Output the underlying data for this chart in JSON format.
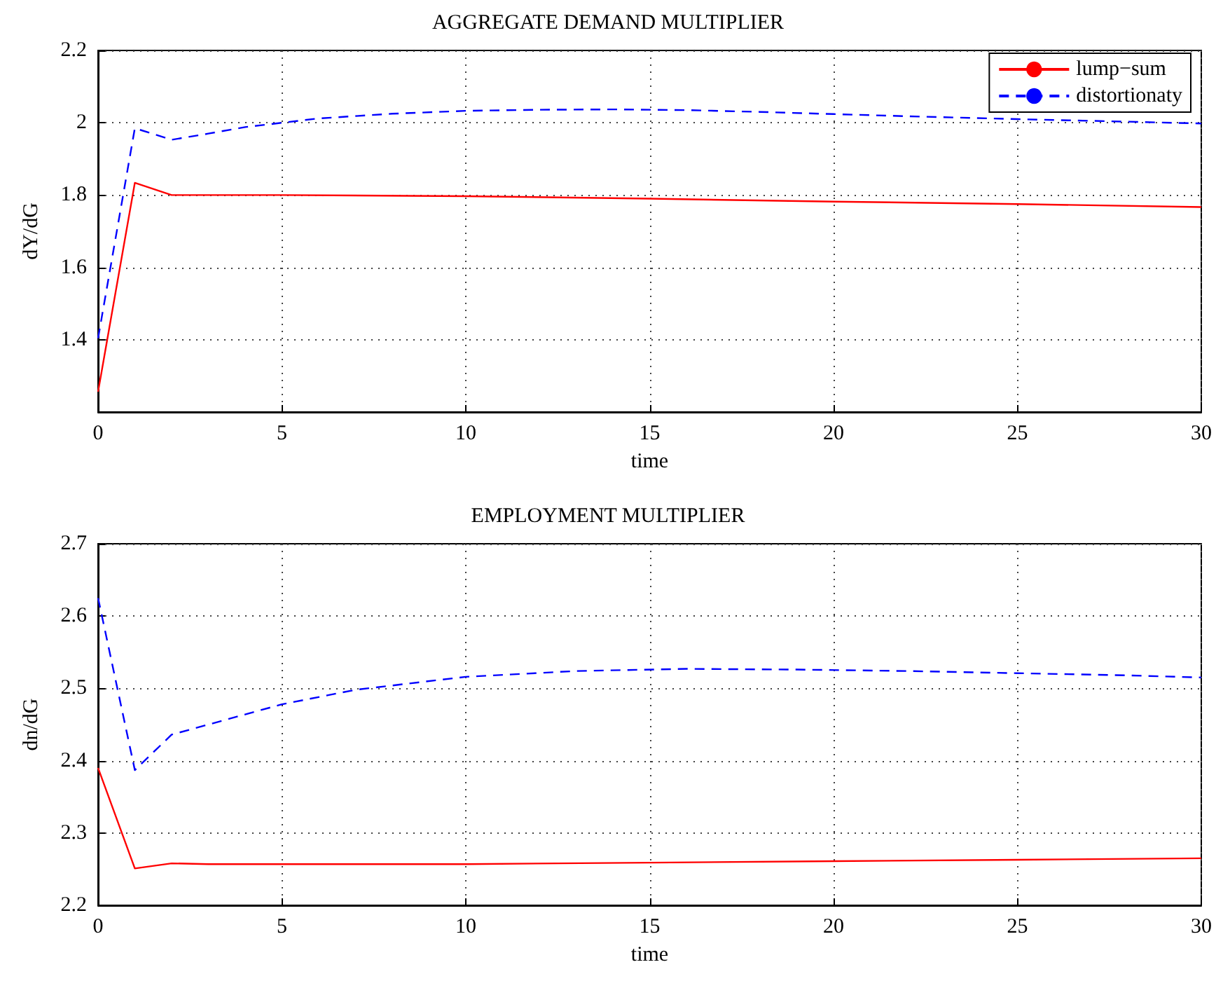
{
  "chart_data": [
    {
      "type": "line",
      "title": "AGGREGATE DEMAND MULTIPLIER",
      "xlabel": "time",
      "ylabel": "dY/dG",
      "xlim": [
        0,
        30
      ],
      "xticks": [
        0,
        5,
        10,
        15,
        20,
        25,
        30
      ],
      "ylim": [
        1.2,
        2.2
      ],
      "yticks": [
        {
          "value": 1.2,
          "label": null
        },
        1.4,
        1.6,
        1.8,
        2,
        2.2
      ],
      "grid": true,
      "legend": "top right",
      "marker": "none",
      "series": [
        {
          "name": "lump−sum",
          "color": "#ff0000",
          "line_style": "solid",
          "x": [
            0,
            1,
            2,
            5,
            10,
            15,
            20,
            25,
            30
          ],
          "values": [
            1.256,
            1.834,
            1.8,
            1.8,
            1.797,
            1.79,
            1.782,
            1.775,
            1.767
          ]
        },
        {
          "name": "distortionaty",
          "color": "#0000ff",
          "line_style": "dashed",
          "x": [
            0,
            1,
            2,
            3,
            4,
            5,
            6,
            8,
            10,
            12,
            14,
            16,
            18,
            20,
            22,
            25,
            28,
            30
          ],
          "values": [
            1.404,
            1.985,
            1.953,
            1.97,
            1.988,
            2.0,
            2.012,
            2.025,
            2.033,
            2.036,
            2.037,
            2.035,
            2.03,
            2.024,
            2.018,
            2.01,
            2.003,
            1.998
          ]
        }
      ]
    },
    {
      "type": "line",
      "title": "EMPLOYMENT MULTIPLIER",
      "xlabel": "time",
      "ylabel": "dn/dG",
      "xlim": [
        0,
        30
      ],
      "xticks": [
        0,
        5,
        10,
        15,
        20,
        25,
        30
      ],
      "ylim": [
        2.2,
        2.7
      ],
      "yticks": [
        2.2,
        2.3,
        2.4,
        2.5,
        2.6,
        2.7
      ],
      "grid": true,
      "marker": "none",
      "series": [
        {
          "color": "#ff0000",
          "line_style": "solid",
          "x": [
            0,
            1,
            2,
            3,
            5,
            10,
            15,
            20,
            25,
            30
          ],
          "values": [
            2.39,
            2.251,
            2.258,
            2.257,
            2.257,
            2.257,
            2.259,
            2.261,
            2.263,
            2.265
          ]
        },
        {
          "color": "#0000ff",
          "line_style": "dashed",
          "x": [
            0,
            1,
            2,
            3,
            5,
            7,
            10,
            13,
            16,
            19,
            22,
            25,
            28,
            30
          ],
          "values": [
            2.625,
            2.387,
            2.436,
            2.45,
            2.478,
            2.498,
            2.516,
            2.524,
            2.527,
            2.526,
            2.524,
            2.521,
            2.518,
            2.515
          ]
        }
      ]
    }
  ]
}
